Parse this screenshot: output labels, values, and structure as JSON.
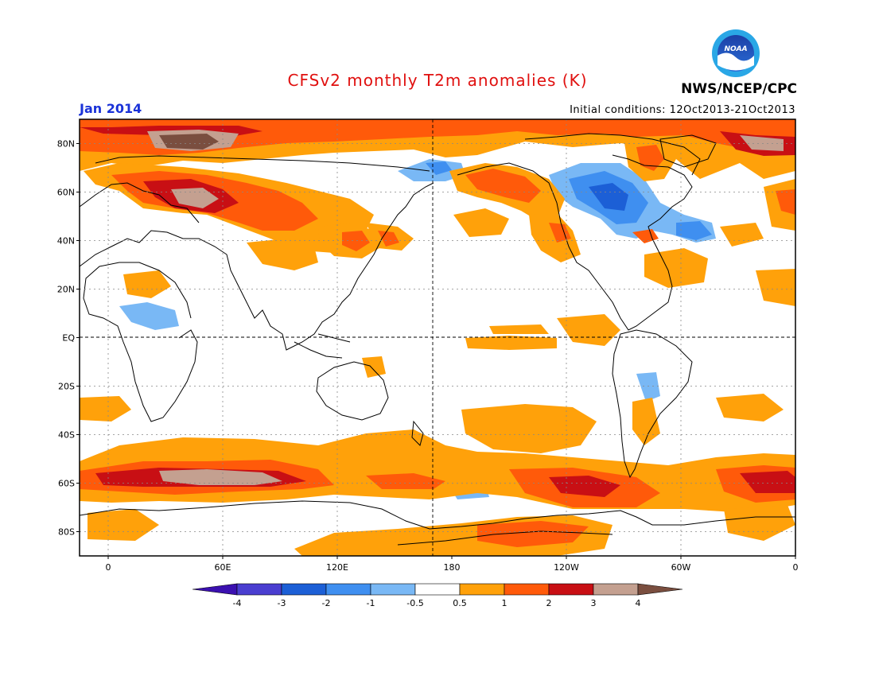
{
  "header": {
    "title": "CFSv2 monthly T2m anomalies (K)",
    "agency": "NWS/NCEP/CPC",
    "logo_text": "NOAA",
    "valid_month": "Jan 2014",
    "initial_conditions": "Initial conditions: 12Oct2013-21Oct2013"
  },
  "axes": {
    "lat_labels": [
      "80N",
      "60N",
      "40N",
      "20N",
      "EQ",
      "20S",
      "40S",
      "60S",
      "80S"
    ],
    "lat_values": [
      80,
      60,
      40,
      20,
      0,
      -20,
      -40,
      -60,
      -80
    ],
    "lon_labels": [
      "0",
      "60E",
      "120E",
      "180",
      "120W",
      "60W",
      "0"
    ],
    "lon_values": [
      0,
      60,
      120,
      180,
      240,
      300,
      360
    ],
    "lon_range": [
      -15,
      360
    ],
    "lat_range": [
      -90,
      90
    ]
  },
  "colorbar": {
    "units": "K",
    "colors": [
      "#3b10b0",
      "#4a3ed0",
      "#1c5fd6",
      "#3f8ff0",
      "#79b8f5",
      "#ffffff",
      "#ffa10a",
      "#ff5a0a",
      "#c80f14",
      "#c4a090",
      "#7a4e3f"
    ],
    "tick_labels": [
      "-4",
      "-3",
      "-2",
      "-1",
      "-0.5",
      "0.5",
      "1",
      "2",
      "3",
      "4"
    ]
  },
  "colors": {
    "warm_05": "#ffa10a",
    "warm_1": "#ff5a0a",
    "warm_2": "#c80f14",
    "warm_3": "#c4a090",
    "warm_4": "#7a4e3f",
    "cool_05": "#79b8f5",
    "cool_1": "#3f8ff0",
    "cool_2": "#1c5fd6",
    "title": "#e0100f",
    "month": "#1a32d8"
  }
}
